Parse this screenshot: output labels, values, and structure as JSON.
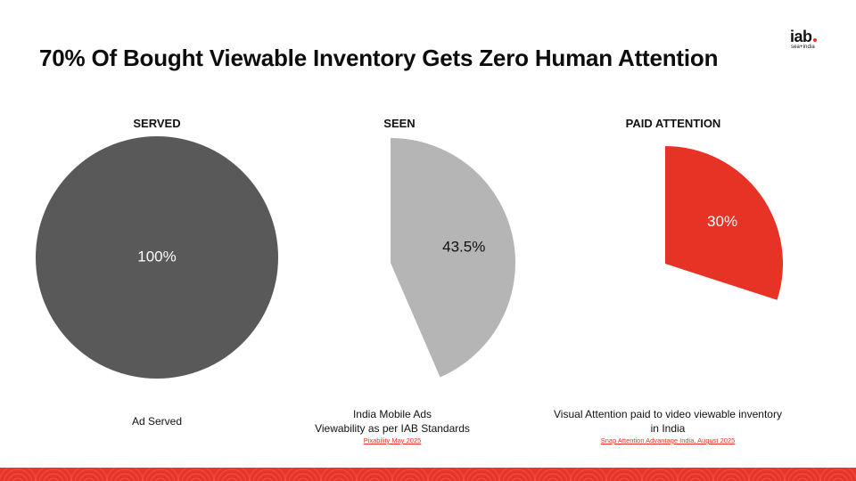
{
  "title": "70% Of Bought Viewable Inventory Gets Zero Human Attention",
  "logo": {
    "mark": "iab",
    "sub": "sea+india"
  },
  "colors": {
    "served": "#595959",
    "seen": "#b5b5b5",
    "attention": "#e63325",
    "band": "#e8352a"
  },
  "chart_data": [
    {
      "type": "pie",
      "title": "SERVED",
      "values": [
        100
      ],
      "data_labels": [
        "100%"
      ],
      "caption": [
        "Ad Served"
      ],
      "source": ""
    },
    {
      "type": "pie",
      "title": "SEEN",
      "values": [
        43.5
      ],
      "data_labels": [
        "43.5%"
      ],
      "caption": [
        "India Mobile Ads",
        "Viewability as per IAB Standards"
      ],
      "source": "Pixability May 2025"
    },
    {
      "type": "pie",
      "title": "PAID ATTENTION",
      "values": [
        30
      ],
      "data_labels": [
        "30%"
      ],
      "caption": [
        "Visual Attention paid to video viewable inventory",
        "in India"
      ],
      "source": "Snap Attention Advantage India, August 2025"
    }
  ]
}
